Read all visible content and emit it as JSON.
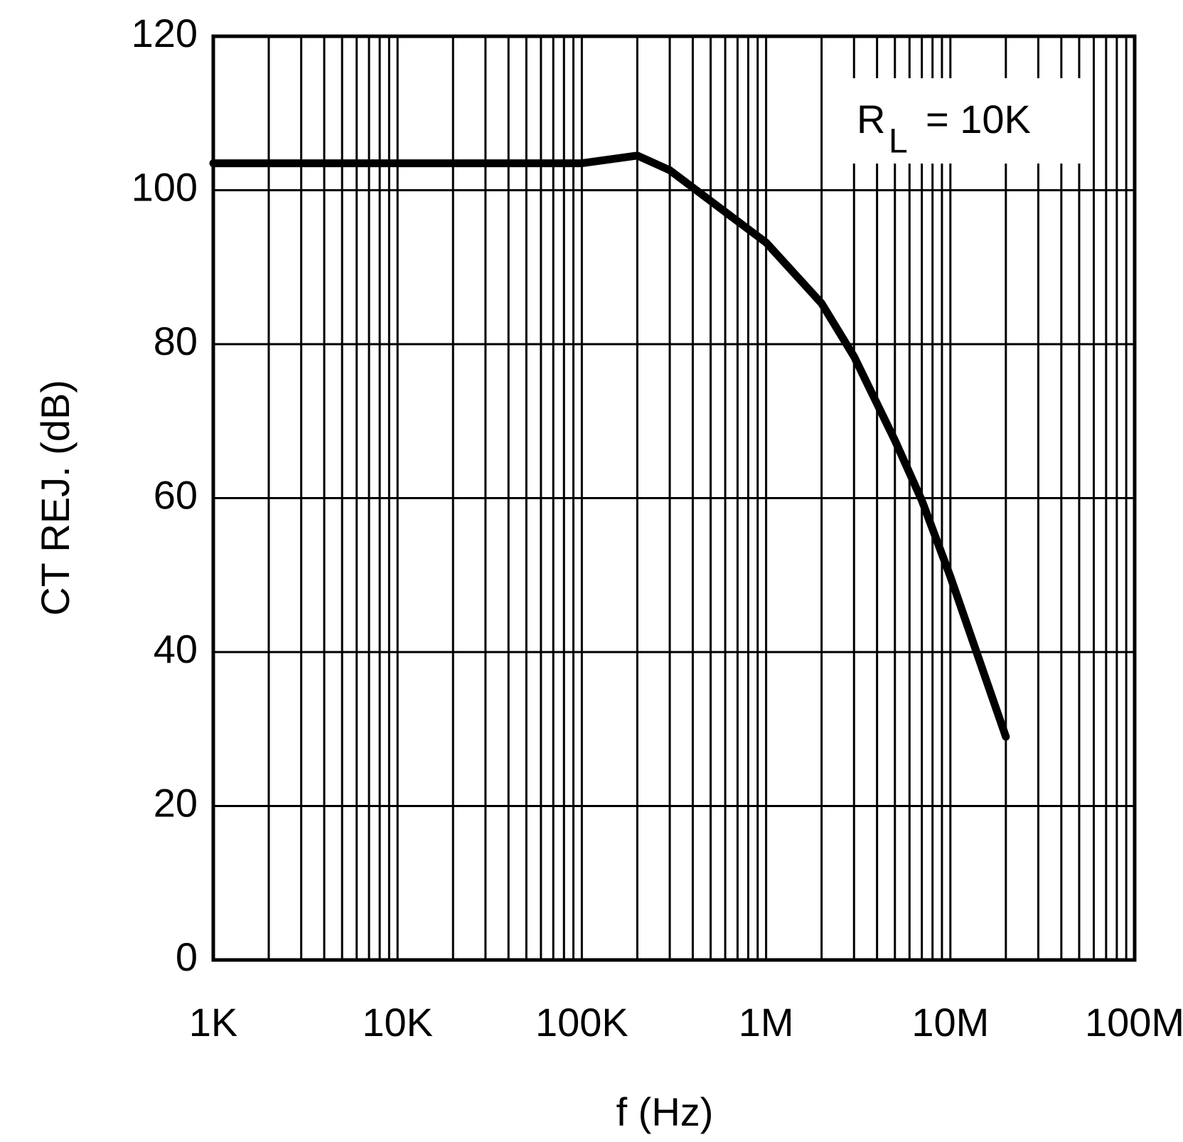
{
  "chart_data": {
    "type": "line",
    "x_label": "f (Hz)",
    "y_label": "CT REJ. (dB)",
    "annotation": {
      "text": "R",
      "subscript": "L",
      "rest": "= 10K"
    },
    "x_scale": "log",
    "grid": true,
    "x_minor_grid": true,
    "xlim": [
      1000,
      100000000
    ],
    "xticks": [
      {
        "value": 1000,
        "label": "1K"
      },
      {
        "value": 10000,
        "label": "10K"
      },
      {
        "value": 100000,
        "label": "100K"
      },
      {
        "value": 1000000,
        "label": "1M"
      },
      {
        "value": 10000000,
        "label": "10M"
      },
      {
        "value": 100000000,
        "label": "100M"
      }
    ],
    "ylim": [
      0,
      120
    ],
    "yticks": [
      0,
      20,
      40,
      60,
      80,
      100,
      120
    ],
    "series": [
      {
        "color": "#000000",
        "x": [
          1000,
          100000,
          200000,
          300000,
          500000,
          1000000,
          2000000,
          3000000,
          5000000,
          7000000,
          10000000,
          20000000
        ],
        "values": [
          103.5,
          103.5,
          104.5,
          102.6,
          98.6,
          93.2,
          85.3,
          78.4,
          67.5,
          59.7,
          49.8,
          29
        ]
      }
    ]
  }
}
